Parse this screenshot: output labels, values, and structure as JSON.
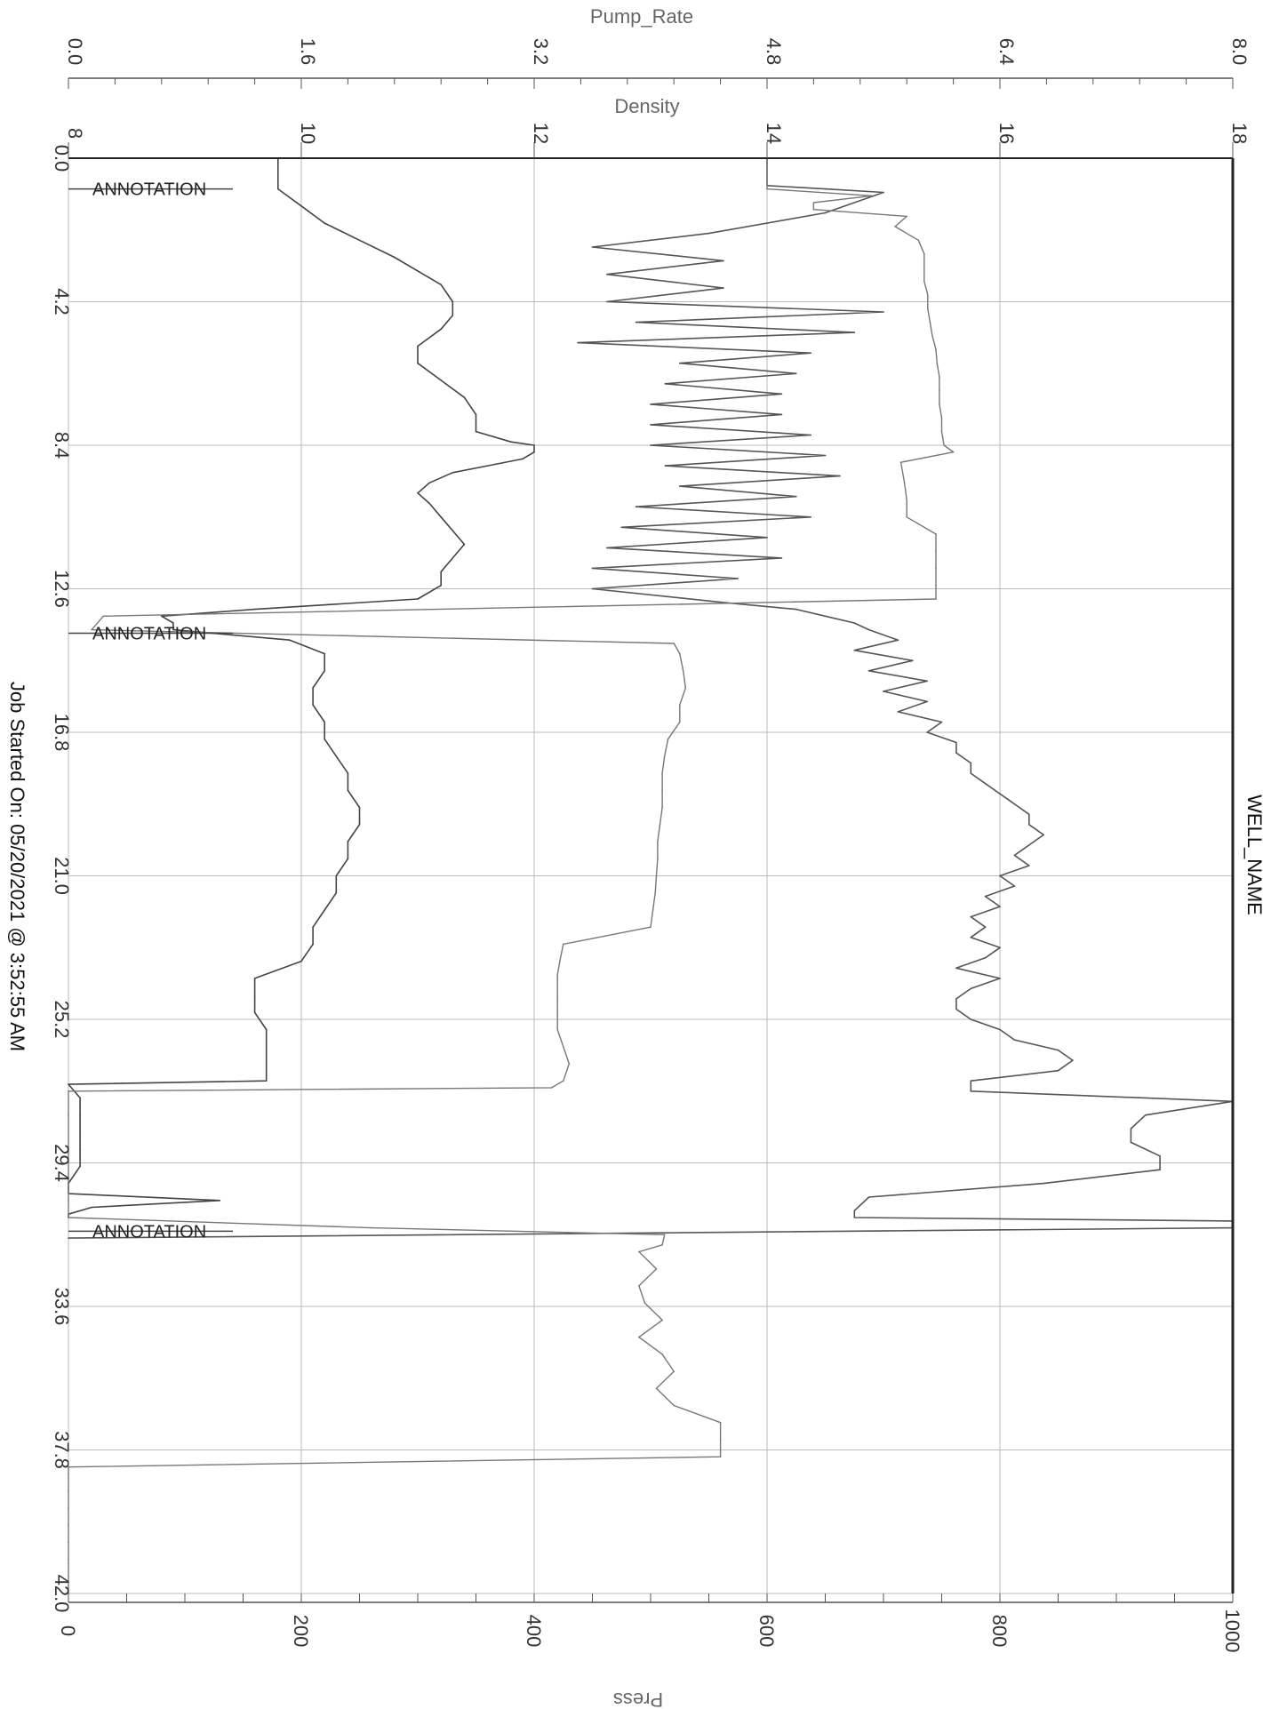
{
  "chart_data": {
    "type": "line",
    "title": "WELL_NAME",
    "footer": "Job Started On: 05/20/2021 @ 3:52:55 AM",
    "grid": true,
    "axes": {
      "time": {
        "label": "",
        "range": [
          0,
          42
        ],
        "ticks": [
          "0.0",
          "4.2",
          "8.4",
          "12.6",
          "16.8",
          "21.0",
          "25.2",
          "29.4",
          "33.6",
          "37.8",
          "42.0"
        ]
      },
      "pump_rate": {
        "label": "Pump_Rate",
        "range": [
          0,
          8
        ],
        "ticks": [
          "0.0",
          "1.6",
          "3.2",
          "4.8",
          "6.4",
          "8.0"
        ]
      },
      "density": {
        "label": "Density",
        "range": [
          8,
          18
        ],
        "ticks": [
          "8",
          "10",
          "12",
          "14",
          "16",
          "18"
        ]
      },
      "press": {
        "label": "Press",
        "range": [
          0,
          1000
        ],
        "ticks": [
          "0",
          "200",
          "400",
          "600",
          "800",
          "1000"
        ]
      }
    },
    "annotations": [
      {
        "text": "ANNOTATION",
        "time": 0.9
      },
      {
        "text": "ANNOTATION",
        "time": 13.9
      },
      {
        "text": "ANNOTATION",
        "time": 31.4
      }
    ],
    "series": [
      {
        "name": "Pump_Rate",
        "axis": "pump_rate",
        "x": [
          0.0,
          0.8,
          0.9,
          1.0,
          1.6,
          2.2,
          2.6,
          3.0,
          3.4,
          3.8,
          4.2,
          4.5,
          4.8,
          5.1,
          5.4,
          5.7,
          6.0,
          6.3,
          6.6,
          6.9,
          7.2,
          7.5,
          7.8,
          8.1,
          8.4,
          8.7,
          9.0,
          9.3,
          9.6,
          9.9,
          10.2,
          10.5,
          10.8,
          11.1,
          11.4,
          11.7,
          12.0,
          12.3,
          12.6,
          13.0,
          13.2,
          13.4,
          13.6,
          13.8,
          14.1,
          14.4,
          14.7,
          15.0,
          15.3,
          15.6,
          15.9,
          16.2,
          16.5,
          16.8,
          17.1,
          17.4,
          17.7,
          18.0,
          18.3,
          18.6,
          18.9,
          19.2,
          19.5,
          19.8,
          20.1,
          20.4,
          20.7,
          21.0,
          21.3,
          21.6,
          21.9,
          22.2,
          22.5,
          22.8,
          23.1,
          23.4,
          23.7,
          24.0,
          24.3,
          24.6,
          24.9,
          25.2,
          25.5,
          25.8,
          26.1,
          26.4,
          26.7,
          27.0,
          27.3,
          27.6,
          28.0,
          28.4,
          28.8,
          29.2,
          29.6,
          30.0,
          30.4,
          30.8,
          31.0,
          31.1,
          31.3,
          31.6
        ],
        "y": [
          4.8,
          4.8,
          5.2,
          5.6,
          5.2,
          4.4,
          3.6,
          4.5,
          3.7,
          4.5,
          3.7,
          5.6,
          3.9,
          5.4,
          3.5,
          5.1,
          4.2,
          5.0,
          4.1,
          4.9,
          4.0,
          4.9,
          4.0,
          5.1,
          4.0,
          5.2,
          4.1,
          5.3,
          4.2,
          5.0,
          3.9,
          5.1,
          3.8,
          4.8,
          3.7,
          4.9,
          3.6,
          4.6,
          3.6,
          4.5,
          5.0,
          5.2,
          5.4,
          5.5,
          5.7,
          5.4,
          5.8,
          5.5,
          5.9,
          5.6,
          5.9,
          5.7,
          6.0,
          5.9,
          6.1,
          6.1,
          6.2,
          6.2,
          6.3,
          6.4,
          6.5,
          6.6,
          6.6,
          6.7,
          6.6,
          6.5,
          6.6,
          6.4,
          6.5,
          6.3,
          6.4,
          6.2,
          6.3,
          6.2,
          6.4,
          6.3,
          6.1,
          6.4,
          6.2,
          6.1,
          6.1,
          6.2,
          6.4,
          6.5,
          6.8,
          6.9,
          6.8,
          6.2,
          6.2,
          8.0,
          7.4,
          7.3,
          7.3,
          7.5,
          7.5,
          6.7,
          5.5,
          5.4,
          5.4,
          8.0,
          8.0,
          0.0
        ]
      },
      {
        "name": "Density",
        "axis": "density",
        "x": [
          0.0,
          0.5,
          0.9,
          1.4,
          1.9,
          2.4,
          2.9,
          3.3,
          3.7,
          4.2,
          4.6,
          5.0,
          5.5,
          6.0,
          6.5,
          7.0,
          7.5,
          8.0,
          8.3,
          8.4,
          8.6,
          8.8,
          9.0,
          9.2,
          9.5,
          9.8,
          10.1,
          10.5,
          10.9,
          11.3,
          11.7,
          12.1,
          12.5,
          12.9,
          13.2,
          13.4,
          13.6,
          13.8,
          14.1,
          14.5,
          15.0,
          15.5,
          16.0,
          16.5,
          17.0,
          17.5,
          18.0,
          18.5,
          19.0,
          19.5,
          20.0,
          20.5,
          21.0,
          21.5,
          22.0,
          22.5,
          23.0,
          23.5,
          24.0,
          24.5,
          25.0,
          25.5,
          26.0,
          26.5,
          27.0,
          27.1,
          27.5,
          28.0,
          28.5,
          29.0,
          29.5,
          30.0,
          30.3,
          30.5,
          30.7,
          30.9,
          31.0
        ],
        "y": [
          9.8,
          9.8,
          9.8,
          10.0,
          10.2,
          10.5,
          10.8,
          11.0,
          11.2,
          11.3,
          11.3,
          11.2,
          11.0,
          11.0,
          11.2,
          11.4,
          11.5,
          11.5,
          11.8,
          12.0,
          12.0,
          11.9,
          11.6,
          11.3,
          11.1,
          11.0,
          11.1,
          11.2,
          11.3,
          11.4,
          11.3,
          11.2,
          11.2,
          11.0,
          9.6,
          8.8,
          8.9,
          8.9,
          9.9,
          10.2,
          10.2,
          10.1,
          10.1,
          10.2,
          10.2,
          10.3,
          10.4,
          10.4,
          10.5,
          10.5,
          10.4,
          10.4,
          10.3,
          10.3,
          10.2,
          10.1,
          10.1,
          10.0,
          9.6,
          9.6,
          9.6,
          9.7,
          9.7,
          9.7,
          9.7,
          8.0,
          8.1,
          8.1,
          8.1,
          8.1,
          8.1,
          8.0,
          8.0,
          9.3,
          8.2,
          8.0,
          8.0
        ]
      },
      {
        "name": "Press",
        "axis": "press",
        "x": [
          0.0,
          0.9,
          1.1,
          1.3,
          1.5,
          1.7,
          2.0,
          2.4,
          2.8,
          3.2,
          3.6,
          4.0,
          4.4,
          4.8,
          5.2,
          5.6,
          6.0,
          6.4,
          6.8,
          7.2,
          7.6,
          8.0,
          8.4,
          8.6,
          8.9,
          9.5,
          10.0,
          10.5,
          11.0,
          11.5,
          12.0,
          12.5,
          12.9,
          13.4,
          13.8,
          14.2,
          14.5,
          15.0,
          15.5,
          16.0,
          16.5,
          17.0,
          17.5,
          18.0,
          18.5,
          19.0,
          19.5,
          20.0,
          20.5,
          21.0,
          21.5,
          22.0,
          22.5,
          23.0,
          23.5,
          23.9,
          24.5,
          25.0,
          25.5,
          26.0,
          26.5,
          27.0,
          27.2,
          27.3,
          28.0,
          29.0,
          30.0,
          30.5,
          31.0,
          31.3,
          31.5,
          31.8,
          32.0,
          32.5,
          33.0,
          33.5,
          34.0,
          34.5,
          35.0,
          35.5,
          36.0,
          36.5,
          37.0,
          37.5,
          38.0,
          38.3,
          38.5,
          39.0,
          39.5,
          40.0,
          40.5,
          41.0,
          41.5,
          42.0
        ],
        "y": [
          600,
          600,
          690,
          640,
          640,
          720,
          710,
          730,
          735,
          735,
          735,
          738,
          738,
          740,
          742,
          745,
          746,
          748,
          748,
          748,
          750,
          750,
          752,
          760,
          715,
          718,
          720,
          720,
          745,
          745,
          745,
          745,
          745,
          30,
          20,
          520,
          525,
          528,
          530,
          525,
          525,
          515,
          512,
          510,
          510,
          510,
          508,
          506,
          506,
          505,
          504,
          502,
          500,
          425,
          422,
          420,
          420,
          420,
          420,
          425,
          430,
          425,
          415,
          0,
          0,
          0,
          0,
          0,
          0,
          260,
          512,
          510,
          490,
          505,
          490,
          495,
          510,
          490,
          510,
          520,
          505,
          520,
          560,
          560,
          560,
          0,
          0,
          0,
          0,
          0,
          0,
          0,
          0,
          0
        ]
      }
    ]
  }
}
